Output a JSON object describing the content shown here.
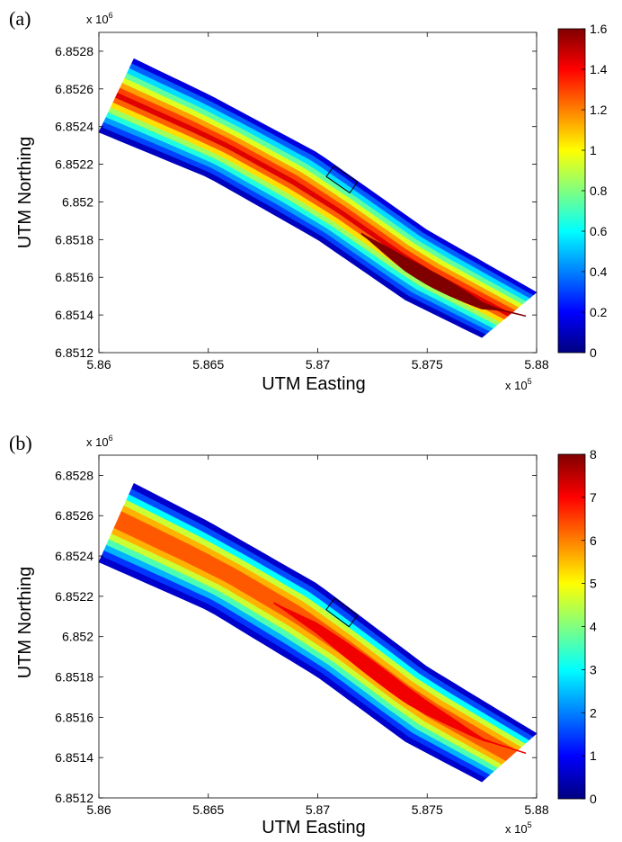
{
  "chart_data": [
    {
      "type": "heatmap",
      "panel_label": "(a)",
      "xlabel": "UTM Easting",
      "ylabel": "UTM Northing",
      "x_multiplier": "x 10",
      "x_exponent": "5",
      "y_multiplier": "x 10",
      "y_exponent": "6",
      "xlim": [
        5.86,
        5.88
      ],
      "ylim": [
        6.8512,
        6.8529
      ],
      "x_ticks": [
        5.86,
        5.865,
        5.87,
        5.875,
        5.88
      ],
      "x_tick_labels": [
        "5.86",
        "5.865",
        "5.87",
        "5.875",
        "5.88"
      ],
      "y_ticks": [
        6.8512,
        6.8514,
        6.8516,
        6.8518,
        6.852,
        6.8522,
        6.8524,
        6.8526,
        6.8528
      ],
      "y_tick_labels": [
        "6.8512",
        "6.8514",
        "6.8516",
        "6.8518",
        "6.852",
        "6.8522",
        "6.8524",
        "6.8526",
        "6.8528"
      ],
      "colorbar": {
        "min": 0,
        "max": 1.6,
        "ticks": [
          0,
          0.2,
          0.4,
          0.6,
          0.8,
          1,
          1.2,
          1.4,
          1.6
        ],
        "tick_labels": [
          "0",
          "0.2",
          "0.4",
          "0.6",
          "0.8",
          "1",
          "1.2",
          "1.4",
          "1.6"
        ],
        "colormap": "jet"
      },
      "river": {
        "left_bank": [
          [
            5.8616,
            6.85276
          ],
          [
            5.865,
            6.85257
          ],
          [
            5.87,
            6.85226
          ],
          [
            5.875,
            6.85185
          ],
          [
            5.88,
            6.85152
          ]
        ],
        "right_bank": [
          [
            5.86,
            6.85237
          ],
          [
            5.865,
            6.85213
          ],
          [
            5.87,
            6.8518
          ],
          [
            5.874,
            6.85148
          ],
          [
            5.8775,
            6.85128
          ]
        ],
        "band_levels_left_to_right": [
          0.15,
          0.35,
          0.55,
          0.75,
          0.95,
          1.15,
          1.3,
          1.45,
          1.25,
          1.05,
          0.85,
          0.65,
          0.45,
          0.3,
          0.1
        ],
        "core_band": {
          "level": 1.6,
          "from_x": 5.872,
          "to_x": 5.8795,
          "from_frac": 0.48,
          "to_frac": 0.68
        }
      },
      "marker_rectangle": {
        "x_center": 5.8711,
        "y_center": 6.85212,
        "length": 0.0013,
        "width": 7e-05,
        "color": "#000000"
      }
    },
    {
      "type": "heatmap",
      "panel_label": "(b)",
      "xlabel": "UTM Easting",
      "ylabel": "UTM Northing",
      "x_multiplier": "x 10",
      "x_exponent": "5",
      "y_multiplier": "x 10",
      "y_exponent": "6",
      "xlim": [
        5.86,
        5.88
      ],
      "ylim": [
        6.8512,
        6.8529
      ],
      "x_ticks": [
        5.86,
        5.865,
        5.87,
        5.875,
        5.88
      ],
      "x_tick_labels": [
        "5.86",
        "5.865",
        "5.87",
        "5.875",
        "5.88"
      ],
      "y_ticks": [
        6.8512,
        6.8514,
        6.8516,
        6.8518,
        6.852,
        6.8522,
        6.8524,
        6.8526,
        6.8528
      ],
      "y_tick_labels": [
        "6.8512",
        "6.8514",
        "6.8516",
        "6.8518",
        "6.852",
        "6.8522",
        "6.8524",
        "6.8526",
        "6.8528"
      ],
      "colorbar": {
        "min": 0,
        "max": 8,
        "ticks": [
          0,
          1,
          2,
          3,
          4,
          5,
          6,
          7,
          8
        ],
        "tick_labels": [
          "0",
          "1",
          "2",
          "3",
          "4",
          "5",
          "6",
          "7",
          "8"
        ],
        "colormap": "jet"
      },
      "river": {
        "left_bank": [
          [
            5.8616,
            6.85276
          ],
          [
            5.865,
            6.85257
          ],
          [
            5.87,
            6.85226
          ],
          [
            5.875,
            6.85185
          ],
          [
            5.88,
            6.85152
          ]
        ],
        "right_bank": [
          [
            5.86,
            6.85237
          ],
          [
            5.865,
            6.85213
          ],
          [
            5.87,
            6.8518
          ],
          [
            5.874,
            6.85148
          ],
          [
            5.8775,
            6.85128
          ]
        ],
        "band_levels_left_to_right": [
          0.6,
          1.6,
          3.0,
          4.6,
          5.6,
          6.3,
          6.3,
          6.3,
          5.6,
          4.6,
          3.6,
          2.4,
          1.4,
          0.6
        ],
        "core_band": {
          "level": 7.1,
          "from_x": 5.868,
          "to_x": 5.8795,
          "from_frac": 0.38,
          "to_frac": 0.58
        }
      },
      "marker_rectangle": {
        "x_center": 5.8711,
        "y_center": 6.85212,
        "length": 0.0013,
        "width": 7e-05,
        "color": "#000000"
      }
    }
  ]
}
